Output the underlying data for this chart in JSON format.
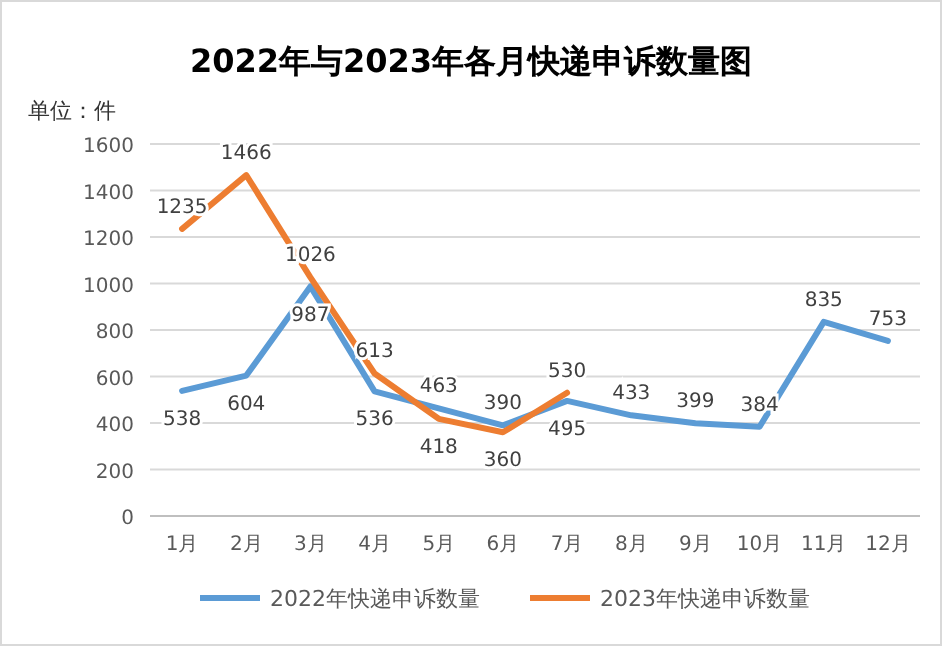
{
  "chart_data": {
    "type": "line",
    "title": "2022年与2023年各月快递申诉数量图",
    "ylabel": "单位：件",
    "categories": [
      "1月",
      "2月",
      "3月",
      "4月",
      "5月",
      "6月",
      "7月",
      "8月",
      "9月",
      "10月",
      "11月",
      "12月"
    ],
    "series": [
      {
        "name": "2022年快递申诉数量",
        "color": "#5b9bd5",
        "values": [
          538,
          604,
          987,
          536,
          463,
          390,
          495,
          433,
          399,
          384,
          835,
          753
        ]
      },
      {
        "name": "2023年快递申诉数量",
        "color": "#ed7d31",
        "values": [
          1235,
          1466,
          1026,
          613,
          418,
          360,
          530,
          null,
          null,
          null,
          null,
          null
        ]
      }
    ],
    "ylim": [
      0,
      1600
    ],
    "yticks": [
      0,
      200,
      400,
      600,
      800,
      1000,
      1200,
      1400,
      1600
    ],
    "grid": "y",
    "legend": "bottom",
    "data_labels": true,
    "marker": "none",
    "line_style": "solid"
  }
}
